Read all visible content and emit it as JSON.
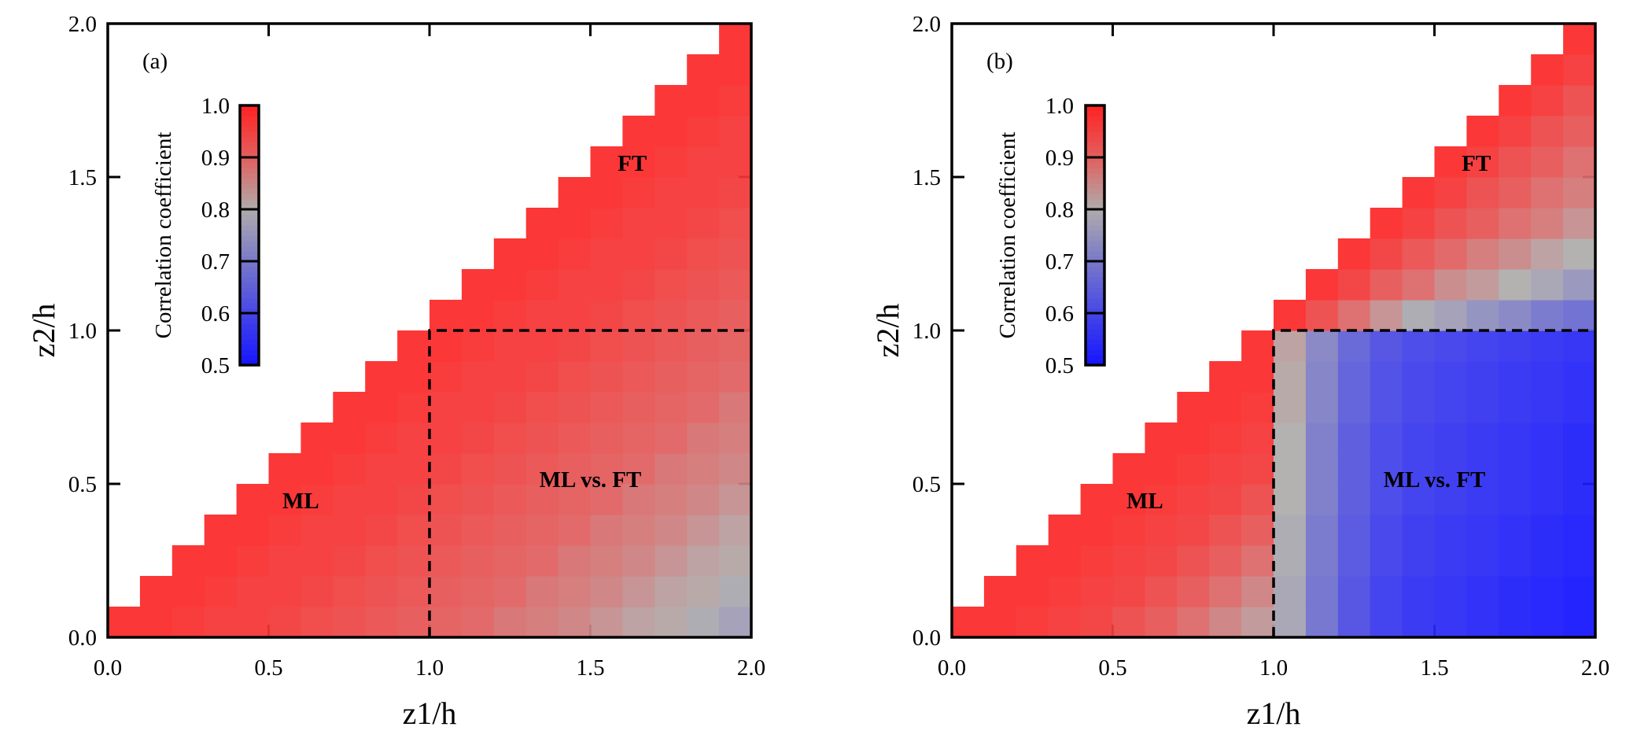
{
  "chart_data": [
    {
      "type": "heatmap",
      "panel_label": "(a)",
      "xlabel": "z1/h",
      "ylabel": "z2/h",
      "xlim": [
        0.0,
        2.0
      ],
      "ylim": [
        0.0,
        2.0
      ],
      "xticks": [
        "0.0",
        "0.5",
        "1.0",
        "1.5",
        "2.0"
      ],
      "yticks": [
        "0.0",
        "0.5",
        "1.0",
        "1.5",
        "2.0"
      ],
      "cell_size": 0.1,
      "grid_note_values_by_z1_column_then_z2_row": true,
      "colorbar": {
        "label": "Correlation coefficient",
        "range": [
          0.5,
          1.0
        ],
        "ticks": [
          "1.0",
          "0.9",
          "0.8",
          "0.7",
          "0.6",
          "0.5"
        ],
        "colormap": [
          "#1414ff",
          "#4646e6",
          "#7878c8",
          "#afacac",
          "#e15f5f",
          "#ff2222"
        ]
      },
      "annotations": [
        "FT",
        "ML",
        "ML vs. FT"
      ],
      "dashed_lines": {
        "z1": 1.0,
        "z2": 1.0
      },
      "values": [
        [
          0.99
        ],
        [
          0.99,
          0.99
        ],
        [
          0.98,
          0.99,
          0.99
        ],
        [
          0.97,
          0.98,
          0.99,
          0.99
        ],
        [
          0.97,
          0.97,
          0.98,
          0.99,
          0.99
        ],
        [
          0.96,
          0.97,
          0.97,
          0.98,
          0.99,
          0.99
        ],
        [
          0.95,
          0.96,
          0.97,
          0.97,
          0.98,
          0.99,
          0.99
        ],
        [
          0.94,
          0.95,
          0.96,
          0.97,
          0.97,
          0.98,
          0.99,
          0.99
        ],
        [
          0.93,
          0.94,
          0.95,
          0.96,
          0.97,
          0.97,
          0.98,
          0.99,
          0.99
        ],
        [
          0.92,
          0.93,
          0.94,
          0.95,
          0.96,
          0.97,
          0.97,
          0.98,
          0.99,
          0.99
        ],
        [
          0.91,
          0.92,
          0.93,
          0.94,
          0.95,
          0.96,
          0.97,
          0.97,
          0.98,
          0.99,
          0.99
        ],
        [
          0.9,
          0.91,
          0.92,
          0.93,
          0.94,
          0.95,
          0.96,
          0.97,
          0.97,
          0.98,
          0.99,
          0.99
        ],
        [
          0.88,
          0.9,
          0.91,
          0.92,
          0.93,
          0.94,
          0.95,
          0.96,
          0.97,
          0.97,
          0.98,
          0.99,
          0.99
        ],
        [
          0.87,
          0.88,
          0.9,
          0.91,
          0.92,
          0.93,
          0.94,
          0.95,
          0.96,
          0.97,
          0.97,
          0.98,
          0.99,
          0.99
        ],
        [
          0.86,
          0.87,
          0.88,
          0.9,
          0.91,
          0.92,
          0.93,
          0.94,
          0.95,
          0.96,
          0.97,
          0.97,
          0.98,
          0.99,
          0.99
        ],
        [
          0.84,
          0.86,
          0.87,
          0.88,
          0.9,
          0.91,
          0.92,
          0.93,
          0.94,
          0.95,
          0.96,
          0.97,
          0.97,
          0.98,
          0.99,
          0.99
        ],
        [
          0.82,
          0.84,
          0.86,
          0.87,
          0.88,
          0.9,
          0.91,
          0.92,
          0.93,
          0.94,
          0.95,
          0.96,
          0.97,
          0.97,
          0.98,
          0.99,
          0.99
        ],
        [
          0.81,
          0.82,
          0.84,
          0.86,
          0.87,
          0.88,
          0.9,
          0.91,
          0.92,
          0.93,
          0.94,
          0.95,
          0.96,
          0.97,
          0.97,
          0.98,
          0.99,
          0.99
        ],
        [
          0.79,
          0.81,
          0.82,
          0.84,
          0.86,
          0.87,
          0.88,
          0.9,
          0.91,
          0.92,
          0.93,
          0.94,
          0.95,
          0.96,
          0.97,
          0.97,
          0.98,
          0.99,
          0.99
        ],
        [
          0.77,
          0.79,
          0.81,
          0.82,
          0.84,
          0.86,
          0.87,
          0.88,
          0.9,
          0.91,
          0.92,
          0.93,
          0.94,
          0.95,
          0.96,
          0.97,
          0.97,
          0.98,
          0.99,
          0.99
        ]
      ]
    },
    {
      "type": "heatmap",
      "panel_label": "(b)",
      "xlabel": "z1/h",
      "ylabel": "z2/h",
      "xlim": [
        0.0,
        2.0
      ],
      "ylim": [
        0.0,
        2.0
      ],
      "xticks": [
        "0.0",
        "0.5",
        "1.0",
        "1.5",
        "2.0"
      ],
      "yticks": [
        "0.0",
        "0.5",
        "1.0",
        "1.5",
        "2.0"
      ],
      "cell_size": 0.1,
      "colorbar": {
        "label": "Correlation coefficient",
        "range": [
          0.5,
          1.0
        ],
        "ticks": [
          "1.0",
          "0.9",
          "0.8",
          "0.7",
          "0.6",
          "0.5"
        ],
        "colormap": [
          "#1414ff",
          "#4646e6",
          "#7878c8",
          "#afacac",
          "#e15f5f",
          "#ff2222"
        ]
      },
      "annotations": [
        "FT",
        "ML",
        "ML vs. FT"
      ],
      "dashed_lines": {
        "z1": 1.0,
        "z2": 1.0
      },
      "values": [
        [
          0.99
        ],
        [
          0.99,
          0.99
        ],
        [
          0.98,
          0.99,
          0.99
        ],
        [
          0.97,
          0.98,
          0.99,
          0.99
        ],
        [
          0.96,
          0.97,
          0.98,
          0.99,
          0.99
        ],
        [
          0.94,
          0.96,
          0.97,
          0.98,
          0.99,
          0.99
        ],
        [
          0.92,
          0.94,
          0.96,
          0.97,
          0.98,
          0.99,
          0.99
        ],
        [
          0.89,
          0.92,
          0.94,
          0.96,
          0.97,
          0.98,
          0.99,
          0.99
        ],
        [
          0.86,
          0.89,
          0.92,
          0.94,
          0.96,
          0.97,
          0.98,
          0.99,
          0.99
        ],
        [
          0.83,
          0.86,
          0.89,
          0.92,
          0.94,
          0.96,
          0.97,
          0.98,
          0.99,
          0.99
        ],
        [
          0.78,
          0.78,
          0.79,
          0.79,
          0.8,
          0.8,
          0.8,
          0.81,
          0.81,
          0.82,
          0.99
        ],
        [
          0.68,
          0.68,
          0.69,
          0.69,
          0.7,
          0.7,
          0.7,
          0.71,
          0.71,
          0.72,
          0.94,
          0.99
        ],
        [
          0.61,
          0.61,
          0.62,
          0.62,
          0.63,
          0.63,
          0.63,
          0.64,
          0.64,
          0.65,
          0.89,
          0.96,
          0.99
        ],
        [
          0.57,
          0.57,
          0.58,
          0.58,
          0.59,
          0.59,
          0.59,
          0.6,
          0.6,
          0.61,
          0.84,
          0.92,
          0.96,
          0.99
        ],
        [
          0.55,
          0.55,
          0.56,
          0.56,
          0.57,
          0.57,
          0.57,
          0.58,
          0.58,
          0.59,
          0.79,
          0.89,
          0.93,
          0.97,
          0.99
        ],
        [
          0.54,
          0.54,
          0.55,
          0.55,
          0.56,
          0.56,
          0.56,
          0.57,
          0.57,
          0.58,
          0.77,
          0.85,
          0.9,
          0.94,
          0.97,
          0.99
        ],
        [
          0.53,
          0.53,
          0.54,
          0.54,
          0.55,
          0.55,
          0.55,
          0.56,
          0.56,
          0.57,
          0.74,
          0.83,
          0.87,
          0.92,
          0.94,
          0.97,
          0.99
        ],
        [
          0.52,
          0.52,
          0.53,
          0.53,
          0.54,
          0.54,
          0.54,
          0.55,
          0.55,
          0.56,
          0.72,
          0.8,
          0.85,
          0.89,
          0.92,
          0.94,
          0.97,
          0.99
        ],
        [
          0.51,
          0.51,
          0.52,
          0.52,
          0.53,
          0.53,
          0.53,
          0.54,
          0.54,
          0.55,
          0.69,
          0.78,
          0.82,
          0.87,
          0.89,
          0.92,
          0.94,
          0.97,
          0.99
        ],
        [
          0.5,
          0.5,
          0.51,
          0.51,
          0.52,
          0.52,
          0.52,
          0.53,
          0.53,
          0.54,
          0.67,
          0.75,
          0.8,
          0.84,
          0.87,
          0.89,
          0.92,
          0.94,
          0.97,
          0.99
        ]
      ]
    }
  ]
}
